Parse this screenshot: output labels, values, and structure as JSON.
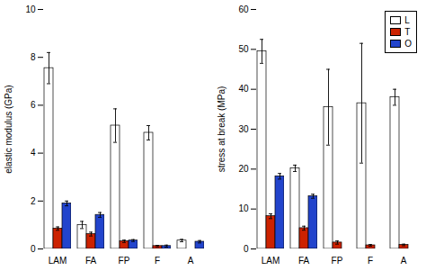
{
  "chart_data": [
    {
      "type": "bar",
      "categories": [
        "LAM",
        "FA",
        "FP",
        "F",
        "A"
      ],
      "ylabel": "elastic modulus (GPa)",
      "ylim": [
        0,
        10
      ],
      "yticks": [
        0,
        2,
        4,
        6,
        8,
        10
      ],
      "series": [
        {
          "name": "L",
          "color": "white",
          "values": [
            7.55,
            1.0,
            5.15,
            4.85,
            0.35
          ],
          "errors": [
            0.65,
            0.15,
            0.7,
            0.3,
            0.05
          ]
        },
        {
          "name": "T",
          "color": "#cc2200",
          "values": [
            0.85,
            0.62,
            0.32,
            0.12,
            0.0
          ],
          "errors": [
            0.07,
            0.08,
            0.05,
            0.03,
            0.0
          ]
        },
        {
          "name": "O",
          "color": "#2244cc",
          "values": [
            1.9,
            1.42,
            0.35,
            0.12,
            0.3
          ],
          "errors": [
            0.1,
            0.1,
            0.04,
            0.04,
            0.05
          ]
        }
      ]
    },
    {
      "type": "bar",
      "categories": [
        "LAM",
        "FA",
        "FP",
        "F",
        "A"
      ],
      "ylabel": "stress at break (MPa)",
      "ylim": [
        0,
        60
      ],
      "yticks": [
        0,
        10,
        20,
        30,
        40,
        50,
        60
      ],
      "legend": "upper right",
      "series": [
        {
          "name": "L",
          "color": "white",
          "values": [
            49.5,
            20.2,
            35.5,
            36.5,
            38.0
          ],
          "errors": [
            3.0,
            0.8,
            9.5,
            15.0,
            2.0
          ]
        },
        {
          "name": "T",
          "color": "#cc2200",
          "values": [
            8.2,
            5.2,
            1.6,
            0.9,
            1.0
          ],
          "errors": [
            0.6,
            0.5,
            0.4,
            0.2,
            0.2
          ]
        },
        {
          "name": "O",
          "color": "#2244cc",
          "values": [
            18.2,
            13.2,
            0.0,
            0.0,
            0.0
          ],
          "errors": [
            0.7,
            0.5,
            0.0,
            0.0,
            0.0
          ]
        }
      ]
    }
  ]
}
